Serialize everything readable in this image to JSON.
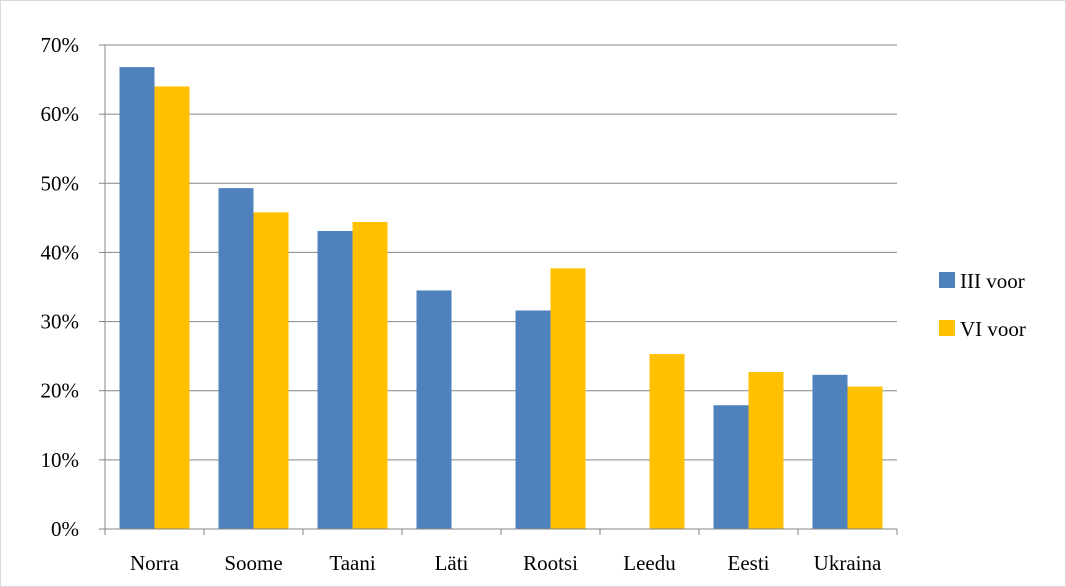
{
  "chart_data": {
    "type": "bar",
    "title": "",
    "xlabel": "",
    "ylabel": "",
    "categories": [
      "Norra",
      "Soome",
      "Taani",
      "Läti",
      "Rootsi",
      "Leedu",
      "Eesti",
      "Ukraina"
    ],
    "series": [
      {
        "name": "III voor",
        "color": "#4f81bd",
        "values": [
          66.8,
          49.3,
          43.1,
          34.5,
          31.6,
          null,
          17.9,
          22.3
        ]
      },
      {
        "name": "VI voor",
        "color": "#ffc000",
        "values": [
          64.0,
          45.8,
          44.4,
          null,
          37.7,
          25.3,
          22.7,
          20.6
        ]
      }
    ],
    "ylim": [
      0,
      70
    ],
    "yticks": [
      0,
      10,
      20,
      30,
      40,
      50,
      60,
      70
    ],
    "ytick_labels": [
      "0%",
      "10%",
      "20%",
      "30%",
      "40%",
      "50%",
      "60%",
      "70%"
    ],
    "grid": true,
    "legend_position": "right"
  }
}
